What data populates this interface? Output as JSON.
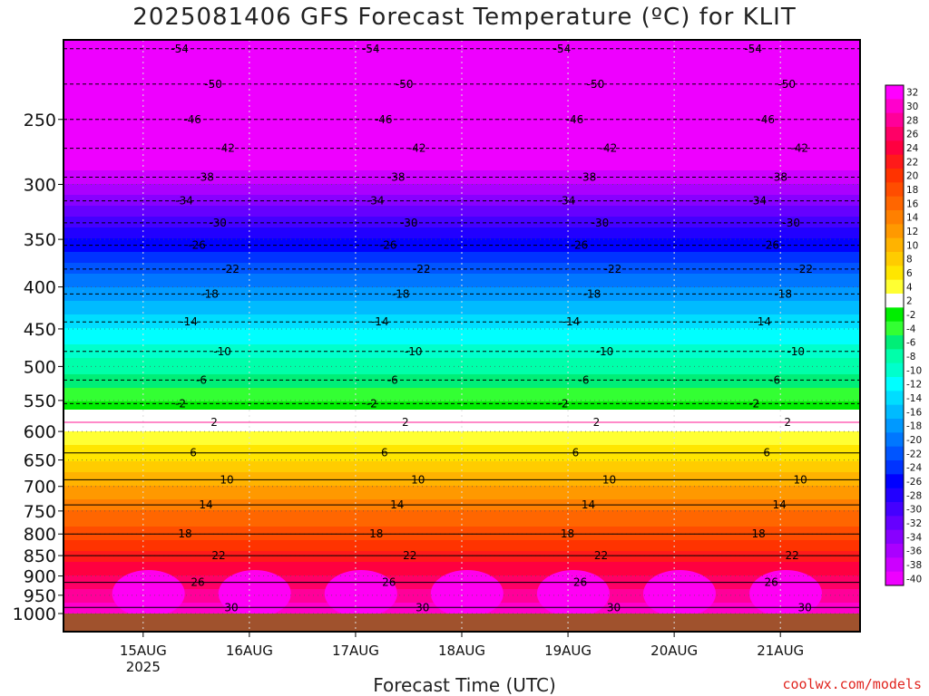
{
  "title": "2025081406 GFS Forecast Temperature (ºC) for KLIT",
  "x_axis_title": "Forecast Time (UTC)",
  "credit": "coolwx.com/models",
  "chart_data": {
    "type": "heatmap",
    "title": "2025081406 GFS Forecast Temperature (ºC) for KLIT",
    "xlabel": "Forecast Time (UTC)",
    "ylabel": "",
    "y_axis": {
      "scale": "log",
      "reversed": true,
      "range": [
        200,
        1000
      ],
      "ticks": [
        250,
        300,
        350,
        400,
        450,
        500,
        550,
        600,
        650,
        700,
        750,
        800,
        850,
        900,
        950,
        1000
      ]
    },
    "x_axis": {
      "ticks": [
        {
          "label": "15AUG",
          "sublabel": "2025",
          "day": 15
        },
        {
          "label": "16AUG",
          "sublabel": "",
          "day": 16
        },
        {
          "label": "17AUG",
          "sublabel": "",
          "day": 17
        },
        {
          "label": "18AUG",
          "sublabel": "",
          "day": 18
        },
        {
          "label": "19AUG",
          "sublabel": "",
          "day": 19
        },
        {
          "label": "20AUG",
          "sublabel": "",
          "day": 20
        },
        {
          "label": "21AUG",
          "sublabel": "",
          "day": 21
        }
      ],
      "range_days": [
        14.25,
        21.75
      ]
    },
    "grid": true,
    "profile": {
      "pressure": [
        200,
        250,
        300,
        350,
        400,
        450,
        500,
        550,
        570,
        600,
        650,
        700,
        750,
        800,
        850,
        900,
        950,
        1000
      ],
      "temperature": [
        -55,
        -46,
        -37,
        -27,
        -19,
        -13,
        -8,
        -3,
        1,
        3,
        7,
        11,
        15,
        18,
        22,
        25,
        28,
        31
      ]
    },
    "contour_levels": [
      -54,
      -50,
      -46,
      -42,
      -38,
      -34,
      -30,
      -26,
      -22,
      -18,
      -14,
      -10,
      -6,
      -2,
      2,
      6,
      10,
      14,
      18,
      22,
      26,
      30
    ],
    "contour_labels": [
      "-54",
      "-50",
      "-46",
      "-42",
      "-38",
      "-34",
      "-30",
      "-26",
      "-22",
      "-18",
      "-14",
      "-10",
      "-6",
      "-2",
      "2",
      "6",
      "10",
      "14",
      "18",
      "22",
      "26",
      "30"
    ],
    "colorbar": {
      "labels": [
        "32",
        "30",
        "28",
        "26",
        "24",
        "22",
        "20",
        "18",
        "16",
        "14",
        "12",
        "10",
        "8",
        "6",
        "4",
        "2",
        "-2",
        "-4",
        "-6",
        "-8",
        "-10",
        "-12",
        "-14",
        "-16",
        "-18",
        "-20",
        "-22",
        "-24",
        "-26",
        "-28",
        "-30",
        "-32",
        "-34",
        "-36",
        "-38",
        "-40"
      ],
      "colors": [
        "#ff00ff",
        "#ff00cc",
        "#ff0099",
        "#ff0066",
        "#ff0040",
        "#ff1a1a",
        "#ff3300",
        "#ff4d00",
        "#ff6600",
        "#ff8000",
        "#ff9900",
        "#ffb300",
        "#ffcc00",
        "#ffe600",
        "#ffff33",
        "#ffffff",
        "#00ee00",
        "#33ff33",
        "#00ee77",
        "#00ffaa",
        "#00ffcc",
        "#00ffff",
        "#00ddff",
        "#00bbff",
        "#0099ff",
        "#0077ff",
        "#0055ff",
        "#0033ff",
        "#0000ff",
        "#2200ff",
        "#4400ff",
        "#6600ff",
        "#8800ff",
        "#aa00ff",
        "#cc00ff",
        "#ee00ff"
      ]
    }
  }
}
